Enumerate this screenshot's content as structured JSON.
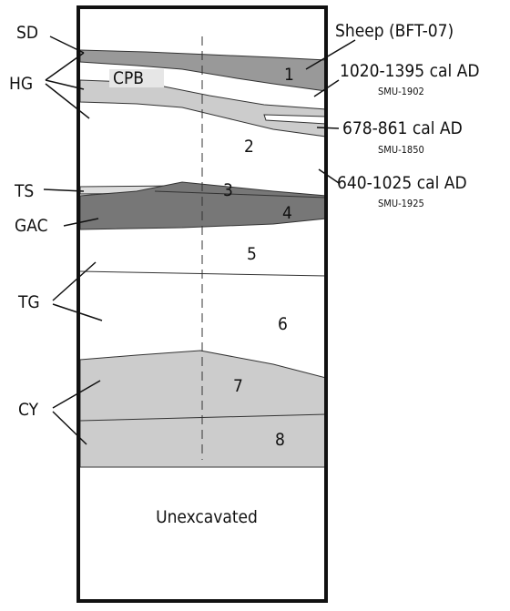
{
  "left_labels": [
    "SD",
    "HG",
    "TS",
    "GAC",
    "TG",
    "CY"
  ],
  "layer_numbers": [
    "1",
    "2",
    "3",
    "4",
    "5",
    "6",
    "7",
    "8"
  ],
  "feature_label": "CPB",
  "bottom_label": "Unexcavated",
  "annotations": [
    {
      "title": "Sheep (BFT-07)"
    },
    {
      "title": "1020-1395 cal AD",
      "code": "SMU-1902"
    },
    {
      "title": "678-861 cal AD",
      "code": "SMU-1850"
    },
    {
      "title": "640-1025 cal AD",
      "code": "SMU-1925"
    }
  ]
}
